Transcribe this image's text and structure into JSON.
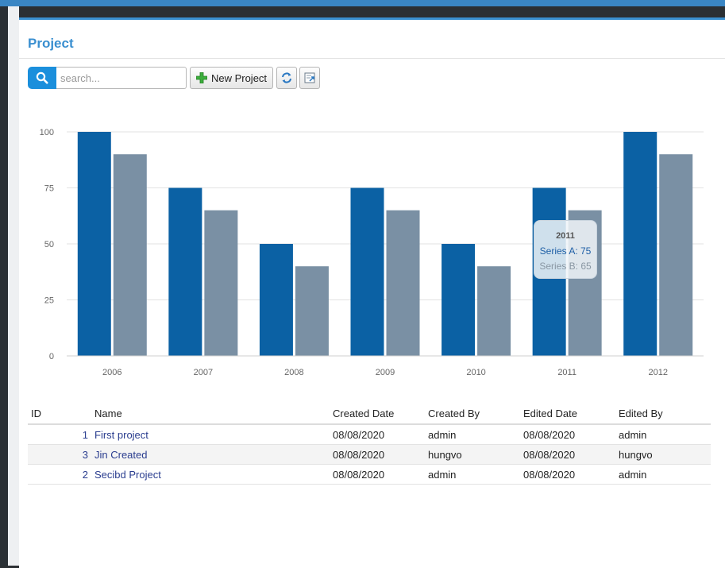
{
  "page": {
    "title": "Project"
  },
  "toolbar": {
    "search_placeholder": "search...",
    "search_value": "",
    "new_project_label": "New Project"
  },
  "colors": {
    "series_a": "#0b61a4",
    "series_b": "#7a90a4",
    "accent": "#3a8fd0"
  },
  "icons": {
    "search": "search-icon",
    "new": "plus-icon",
    "refresh": "refresh-icon",
    "export": "export-icon"
  },
  "chart_data": {
    "type": "bar",
    "categories": [
      "2006",
      "2007",
      "2008",
      "2009",
      "2010",
      "2011",
      "2012"
    ],
    "series": [
      {
        "name": "Series A",
        "values": [
          100,
          75,
          50,
          75,
          50,
          75,
          100
        ]
      },
      {
        "name": "Series B",
        "values": [
          90,
          65,
          40,
          65,
          40,
          65,
          90
        ]
      }
    ],
    "yticks": [
      "0",
      "25",
      "50",
      "75",
      "100"
    ],
    "ylim": [
      0,
      100
    ],
    "grid": true
  },
  "tooltip": {
    "title": "2011",
    "line_a": "Series A: 75",
    "line_b": "Series B: 65"
  },
  "table": {
    "headers": {
      "id": "ID",
      "name": "Name",
      "created_date": "Created Date",
      "created_by": "Created By",
      "edited_date": "Edited Date",
      "edited_by": "Edited By"
    },
    "rows": [
      {
        "id": "1",
        "name": "First project",
        "created_date": "08/08/2020",
        "created_by": "admin",
        "edited_date": "08/08/2020",
        "edited_by": "admin"
      },
      {
        "id": "3",
        "name": "Jin Created",
        "created_date": "08/08/2020",
        "created_by": "hungvo",
        "edited_date": "08/08/2020",
        "edited_by": "hungvo"
      },
      {
        "id": "2",
        "name": "Secibd Project",
        "created_date": "08/08/2020",
        "created_by": "admin",
        "edited_date": "08/08/2020",
        "edited_by": "admin"
      }
    ]
  }
}
